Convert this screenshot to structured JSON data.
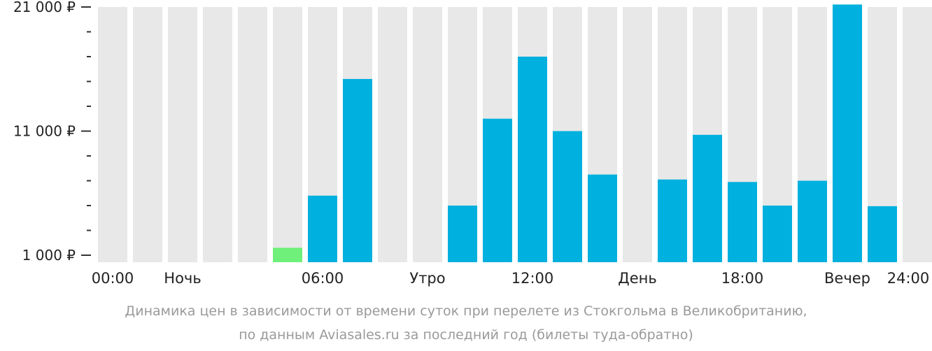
{
  "chart_data": {
    "type": "bar",
    "categories": [
      "00:00",
      "01:00",
      "02:00",
      "03:00",
      "04:00",
      "05:00",
      "06:00",
      "07:00",
      "08:00",
      "09:00",
      "10:00",
      "11:00",
      "12:00",
      "13:00",
      "14:00",
      "15:00",
      "16:00",
      "17:00",
      "18:00",
      "19:00",
      "20:00",
      "21:00",
      "22:00",
      "23:00"
    ],
    "values": [
      null,
      null,
      null,
      null,
      null,
      1600,
      5800,
      15200,
      null,
      null,
      5000,
      12000,
      17000,
      11000,
      7500,
      null,
      7100,
      10700,
      6900,
      5000,
      7000,
      21200,
      4950,
      null
    ],
    "highlight_index": 5,
    "ylim": [
      1000,
      21000
    ],
    "y_ticks": [
      {
        "value": 1000,
        "label": "1 000 ₽"
      },
      {
        "value": 11000,
        "label": "11 000 ₽"
      },
      {
        "value": 21000,
        "label": "21 000 ₽"
      }
    ],
    "x_labels": [
      {
        "slot": 0,
        "label": "00:00"
      },
      {
        "slot": 2,
        "label": "Ночь"
      },
      {
        "slot": 6,
        "label": "06:00"
      },
      {
        "slot": 9,
        "label": "Утро"
      },
      {
        "slot": 12,
        "label": "12:00"
      },
      {
        "slot": 15,
        "label": "День"
      },
      {
        "slot": 18,
        "label": "18:00"
      },
      {
        "slot": 21,
        "label": "Вечер"
      },
      {
        "slot": 24,
        "label": "24:00"
      }
    ],
    "colors": {
      "background_bar": "#e8e8e8",
      "bar": "#00b0de",
      "highlight": "#6ef07a",
      "axis": "#333333"
    }
  },
  "caption": {
    "line1": "Динамика цен в зависимости от времени суток при перелете из Стокгольма в Великобританию,",
    "line2": "по данным Aviasales.ru за последний год (билеты туда-обратно)"
  }
}
